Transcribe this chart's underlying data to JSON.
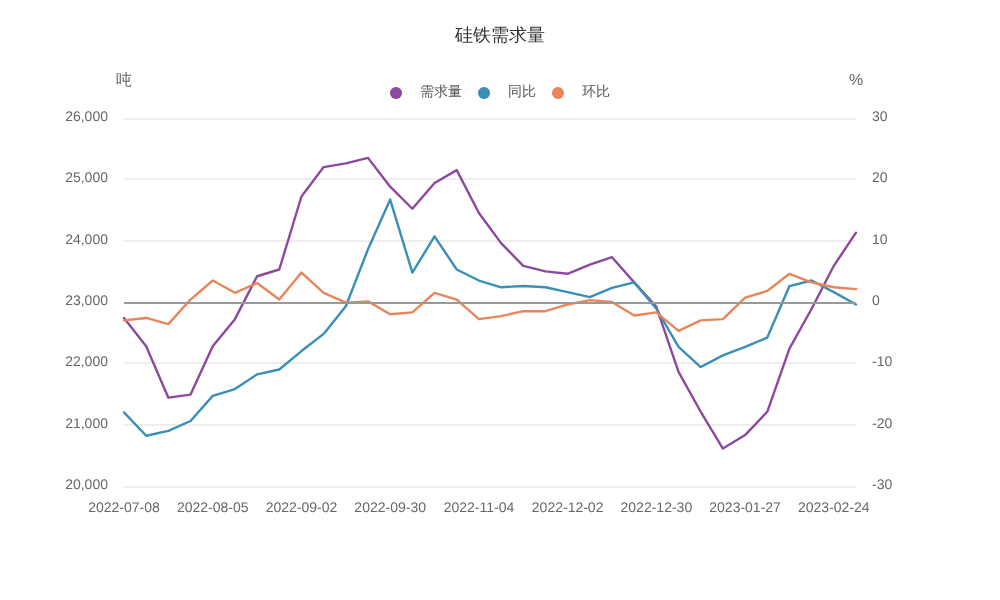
{
  "chart_data": {
    "type": "line",
    "title": "硅铁需求量",
    "ylabel": "吨",
    "y2label": "%",
    "categories": [
      "2022-07-08",
      null,
      null,
      null,
      "2022-08-05",
      null,
      null,
      null,
      "2022-09-02",
      null,
      null,
      null,
      "2022-09-30",
      null,
      null,
      null,
      "2022-11-04",
      null,
      null,
      null,
      "2022-12-02",
      null,
      null,
      null,
      "2022-12-30",
      null,
      null,
      null,
      "2023-01-27",
      null,
      null,
      null,
      "2023-02-24",
      null
    ],
    "series": [
      {
        "name": "需求量",
        "color": "#8b4a9e",
        "values": [
          22740,
          22280,
          21440,
          21490,
          22280,
          22720,
          23420,
          23530,
          24720,
          25200,
          25260,
          25350,
          24880,
          24520,
          24940,
          25150,
          24450,
          23960,
          23590,
          23500,
          23460,
          23610,
          23730,
          23320,
          22920,
          21860,
          21210,
          20610,
          20830,
          21210,
          22240,
          22890,
          23590,
          24130
        ]
      },
      {
        "name": "同比",
        "color": "#3a8fb7",
        "axis": "y2",
        "values": [
          -18.0,
          -21.8,
          -21.0,
          -19.4,
          -15.3,
          -14.2,
          -11.8,
          -11.0,
          -8.0,
          -5.2,
          -0.7,
          8.6,
          16.7,
          4.8,
          10.7,
          5.3,
          3.5,
          2.4,
          2.6,
          2.4,
          1.6,
          0.8,
          2.3,
          3.2,
          -1.1,
          -7.3,
          -10.6,
          -8.7,
          -7.3,
          -5.8,
          2.6,
          3.5,
          1.6,
          -0.4
        ]
      },
      {
        "name": "环比",
        "color": "#e8855a",
        "axis": "y2",
        "values": [
          -3.0,
          -2.6,
          -3.6,
          0.4,
          3.5,
          1.5,
          3.1,
          0.4,
          4.8,
          1.5,
          -0.1,
          0.1,
          -2.0,
          -1.7,
          1.5,
          0.4,
          -2.8,
          -2.3,
          -1.5,
          -1.5,
          -0.4,
          0.3,
          0.0,
          -2.2,
          -1.7,
          -4.7,
          -3.0,
          -2.8,
          0.7,
          1.8,
          4.6,
          3.2,
          2.4,
          2.1
        ]
      }
    ],
    "ylim": [
      20000,
      26000
    ],
    "yticks": [
      {
        "value": 20000,
        "label": "20,000"
      },
      {
        "value": 21000,
        "label": "21,000"
      },
      {
        "value": 22000,
        "label": "22,000"
      },
      {
        "value": 23000,
        "label": "23,000"
      },
      {
        "value": 24000,
        "label": "24,000"
      },
      {
        "value": 25000,
        "label": "25,000"
      },
      {
        "value": 26000,
        "label": "26,000"
      }
    ],
    "y2lim": [
      -30,
      30
    ],
    "y2ticks": [
      -30,
      -20,
      -10,
      0,
      10,
      20,
      30
    ],
    "ref_lines": [
      {
        "axis": "y2",
        "value": 0,
        "label": null,
        "color": "#999999"
      }
    ],
    "grid": "y",
    "legend": "top",
    "marker": "none",
    "line_style": "solid"
  }
}
